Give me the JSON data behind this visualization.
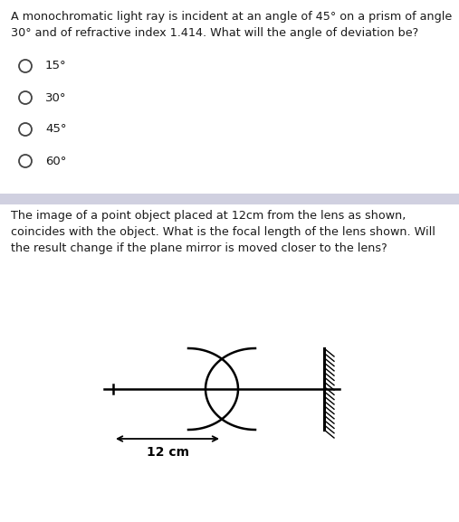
{
  "bg_color": "#ffffff",
  "text_color": "#1a1a1a",
  "q1_line1": "A monochromatic light ray is incident at an angle of 45° on a prism of angle",
  "q1_line2": "30° and of refractive index 1.414. What will the angle of deviation be?",
  "q1_options": [
    "15°",
    "30°",
    "45°",
    "60°"
  ],
  "q2_line1": "The image of a point object placed at 12cm from the lens as shown,",
  "q2_line2": "coincides with the object. What is the focal length of the lens shown. Will",
  "q2_line3": "the result change if the plane mirror is moved closer to the lens?",
  "q2_label": "12 cm",
  "divider_color": "#d0d0e0",
  "font_size_text": 9.2,
  "font_size_opt": 9.5
}
